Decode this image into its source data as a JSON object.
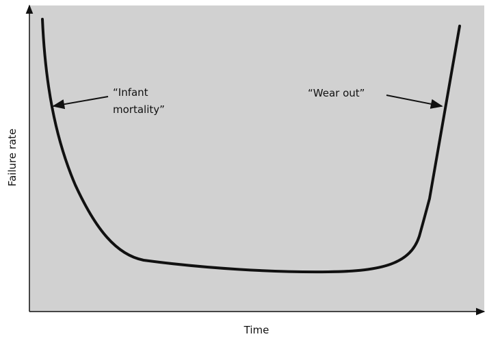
{
  "axes": {
    "x_label": "Time",
    "y_label": "Failure rate"
  },
  "annotations": [
    {
      "lines": [
        "“Infant",
        "mortality”"
      ]
    },
    {
      "lines": [
        "“Wear out”"
      ]
    }
  ]
}
